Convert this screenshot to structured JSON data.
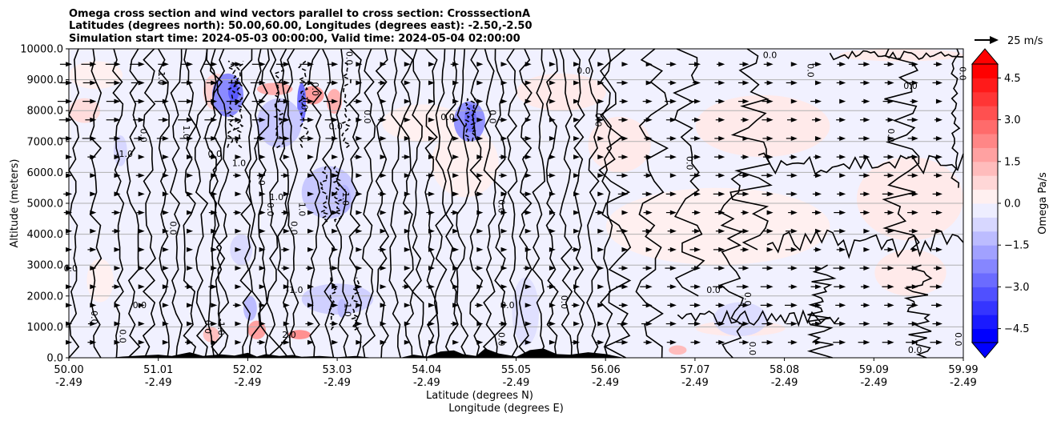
{
  "chart_data": {
    "type": "contour",
    "title_lines": [
      "Omega cross section and wind vectors parallel to cross section: CrosssectionA",
      "Latitudes (degrees north): 50.00,60.00, Longitudes (degrees east): -2.50,-2.50",
      "Simulation start time: 2024-05-03 00:00:00, Valid time: 2024-05-04 02:00:00"
    ],
    "ylabel": "Altitude (meters)",
    "xlabel_line1": "Latitude (degrees N)",
    "xlabel_line2": "Longitude (degrees E)",
    "ylim": [
      0,
      10000
    ],
    "yticks": [
      "0.0",
      "1000.0",
      "2000.0",
      "3000.0",
      "4000.0",
      "5000.0",
      "6000.0",
      "7000.0",
      "8000.0",
      "9000.0",
      "10000.0"
    ],
    "xticks": [
      {
        "lat": "50.00",
        "lon": "-2.49"
      },
      {
        "lat": "51.01",
        "lon": "-2.49"
      },
      {
        "lat": "52.02",
        "lon": "-2.49"
      },
      {
        "lat": "53.03",
        "lon": "-2.49"
      },
      {
        "lat": "54.04",
        "lon": "-2.49"
      },
      {
        "lat": "55.05",
        "lon": "-2.49"
      },
      {
        "lat": "56.06",
        "lon": "-2.49"
      },
      {
        "lat": "57.07",
        "lon": "-2.49"
      },
      {
        "lat": "58.08",
        "lon": "-2.49"
      },
      {
        "lat": "59.09",
        "lon": "-2.49"
      },
      {
        "lat": "59.99",
        "lon": "-2.49"
      }
    ],
    "colorbar": {
      "label": "Omega Pa/s",
      "range": [
        -5.0,
        5.0
      ],
      "ticks": [
        "4.5",
        "3.0",
        "1.5",
        "0.0",
        "−1.5",
        "−3.0",
        "−4.5"
      ],
      "colors": [
        "#0000ff",
        "#1a1aff",
        "#3535ff",
        "#5050ff",
        "#6b6bff",
        "#8686ff",
        "#a1a1ff",
        "#bcbcff",
        "#d7d7ff",
        "#eeeeff",
        "#fff0f0",
        "#ffd7d7",
        "#ffbcbc",
        "#ffa1a1",
        "#ff8686",
        "#ff6b6b",
        "#ff5050",
        "#ff3535",
        "#ff1a1a",
        "#ff0000"
      ],
      "over_color": "#ff0000",
      "under_color": "#0000ff"
    },
    "quiver_key": "25 m/s",
    "contour_labels": [
      {
        "text": "0.0",
        "lat": 50.02,
        "alt": 2800
      },
      {
        "text": "0.0",
        "lat": 50.25,
        "alt": 1300
      },
      {
        "text": "0.0",
        "lat": 50.57,
        "alt": 700
      },
      {
        "text": "-1.0",
        "lat": 50.62,
        "alt": 6500
      },
      {
        "text": "0.0",
        "lat": 50.8,
        "alt": 7200
      },
      {
        "text": "1.0",
        "lat": 51.0,
        "alt": 9050
      },
      {
        "text": "0.0",
        "lat": 50.79,
        "alt": 1600
      },
      {
        "text": "0.0",
        "lat": 51.13,
        "alt": 4200
      },
      {
        "text": "1.0",
        "lat": 51.28,
        "alt": 7300
      },
      {
        "text": "0.0",
        "lat": 51.63,
        "alt": 6500
      },
      {
        "text": "0.0",
        "lat": 51.52,
        "alt": 1000
      },
      {
        "text": "-1.0",
        "lat": 51.67,
        "alt": 1000
      },
      {
        "text": "1.0",
        "lat": 51.9,
        "alt": 6200
      },
      {
        "text": "1.0",
        "lat": 52.12,
        "alt": 5800
      },
      {
        "text": "0.0",
        "lat": 52.22,
        "alt": 4800
      },
      {
        "text": "1.0",
        "lat": 52.32,
        "alt": 5100
      },
      {
        "text": "1.0",
        "lat": 52.57,
        "alt": 4800
      },
      {
        "text": "0.0",
        "lat": 52.48,
        "alt": 4200
      },
      {
        "text": "-1.0",
        "lat": 52.52,
        "alt": 2100
      },
      {
        "text": "-1.0",
        "lat": 52.6,
        "alt": 8300
      },
      {
        "text": "0.0",
        "lat": 52.72,
        "alt": 8700
      },
      {
        "text": "0.0",
        "lat": 52.98,
        "alt": 7400
      },
      {
        "text": "-1.0",
        "lat": 53.06,
        "alt": 5200
      },
      {
        "text": "-1.0",
        "lat": 53.08,
        "alt": 1600
      },
      {
        "text": "2.0",
        "lat": 52.46,
        "alt": 650
      },
      {
        "text": "0.0",
        "lat": 53.1,
        "alt": 9700
      },
      {
        "text": "0.0",
        "lat": 53.3,
        "alt": 7800
      },
      {
        "text": "0.0",
        "lat": 54.23,
        "alt": 7700
      },
      {
        "text": "0.0",
        "lat": 54.7,
        "alt": 7800
      },
      {
        "text": "0.0",
        "lat": 54.8,
        "alt": 4900
      },
      {
        "text": "0.0",
        "lat": 54.9,
        "alt": 1600
      },
      {
        "text": "0.0",
        "lat": 54.8,
        "alt": 600
      },
      {
        "text": "0.0",
        "lat": 55.5,
        "alt": 1800
      },
      {
        "text": "0.0",
        "lat": 55.75,
        "alt": 9200
      },
      {
        "text": "0.0",
        "lat": 55.88,
        "alt": 7700
      },
      {
        "text": "0.0",
        "lat": 56.9,
        "alt": 6300
      },
      {
        "text": "0.0",
        "lat": 57.2,
        "alt": 2100
      },
      {
        "text": "0.0",
        "lat": 57.55,
        "alt": 1900
      },
      {
        "text": "0.0",
        "lat": 57.6,
        "alt": 300
      },
      {
        "text": "0.0",
        "lat": 57.83,
        "alt": 9700
      },
      {
        "text": "0.0",
        "lat": 58.25,
        "alt": 9300
      },
      {
        "text": "0.0",
        "lat": 59.15,
        "alt": 7200
      },
      {
        "text": "0.0",
        "lat": 59.4,
        "alt": 8700
      },
      {
        "text": "0.0",
        "lat": 59.95,
        "alt": 9200
      },
      {
        "text": "0.0",
        "lat": 59.9,
        "alt": 600
      },
      {
        "text": "0.0",
        "lat": 59.45,
        "alt": 150
      }
    ]
  }
}
